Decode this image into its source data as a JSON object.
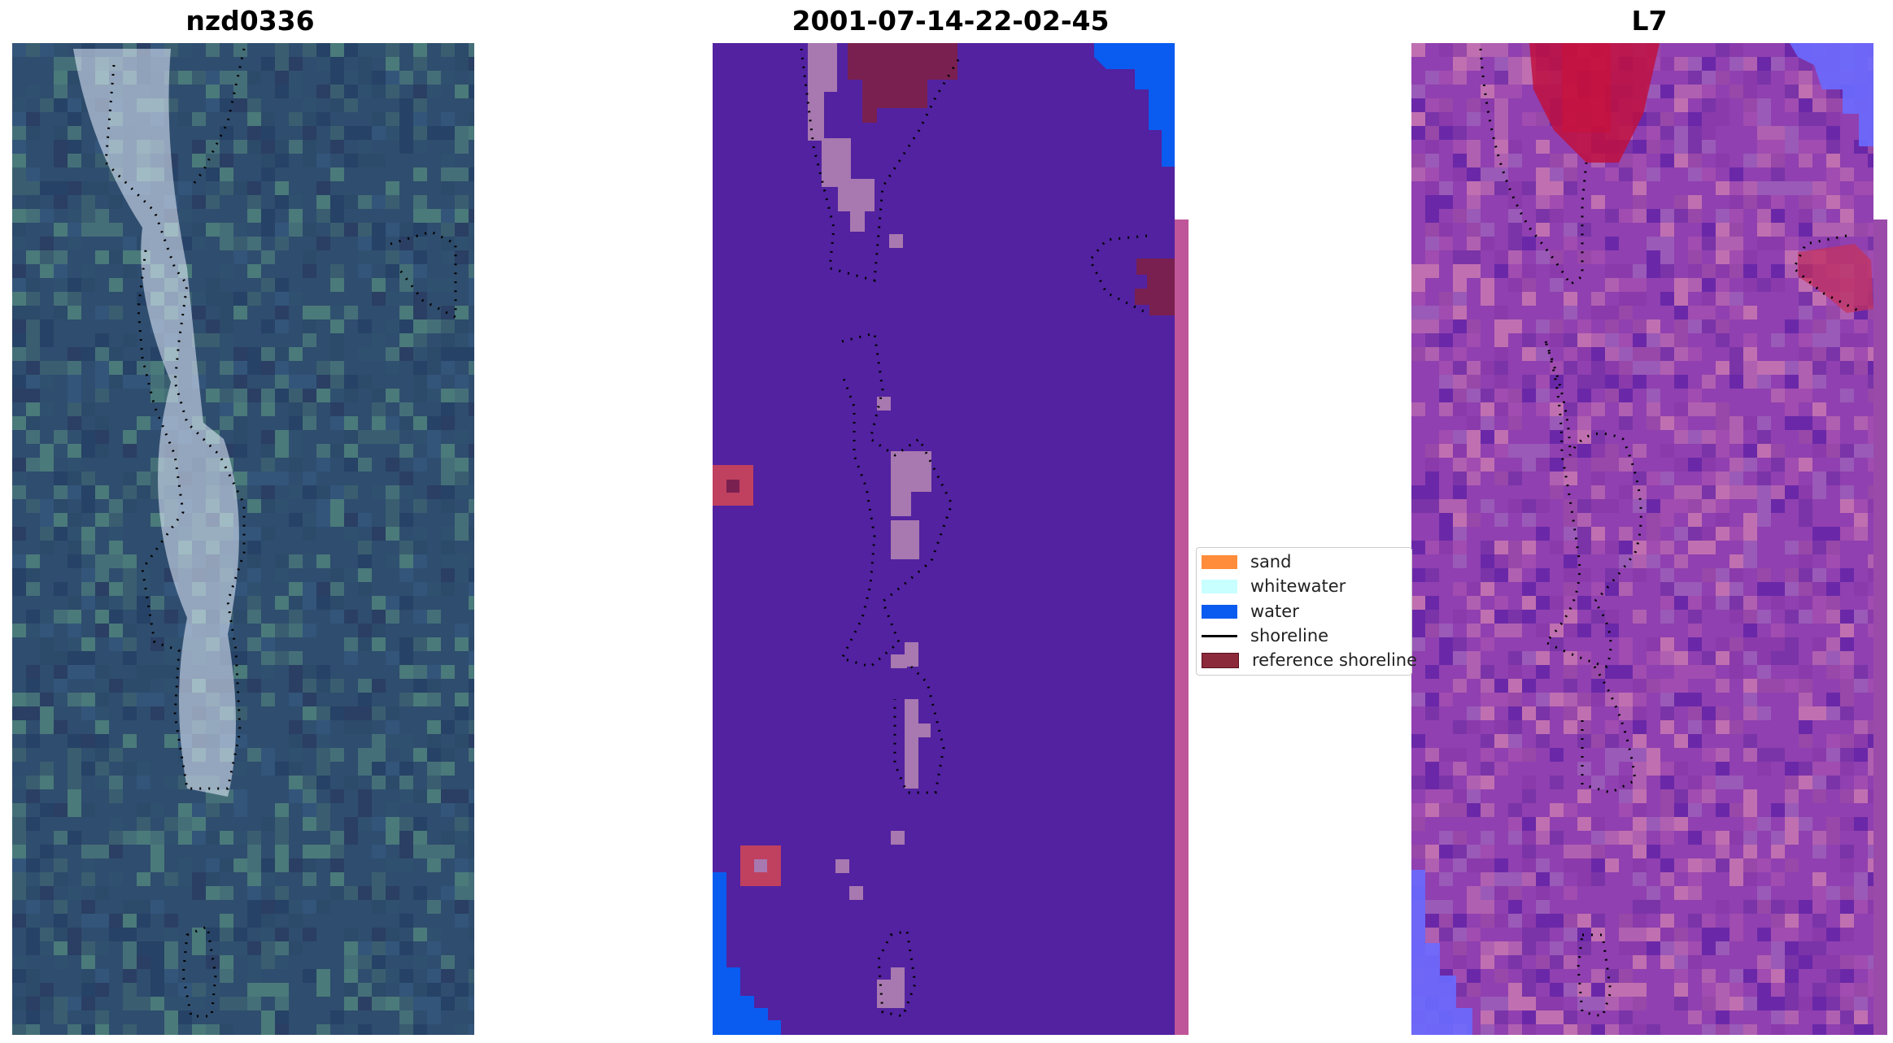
{
  "titles": {
    "left": "nzd0336",
    "center": "2001-07-14-22-02-45",
    "right": "L7"
  },
  "legend": {
    "items": [
      {
        "label": "sand",
        "color": "#ff8c3a",
        "kind": "patch"
      },
      {
        "label": "whitewater",
        "color": "#c8ffff",
        "kind": "patch"
      },
      {
        "label": "water",
        "color": "#0a5cf0",
        "kind": "patch"
      },
      {
        "label": "shoreline",
        "color": "#000000",
        "kind": "line"
      },
      {
        "label": "reference shoreline",
        "color": "#8b2a3a",
        "kind": "patch"
      }
    ]
  },
  "colors": {
    "classified_bg": "#5222a0",
    "classified_sand_overlay": "#a878b0",
    "classified_ref": "#7a2050",
    "water": "#0a5cf0",
    "index_bg": "#9040b0",
    "index_high": "#c01040",
    "index_low": "#6a6aff"
  }
}
